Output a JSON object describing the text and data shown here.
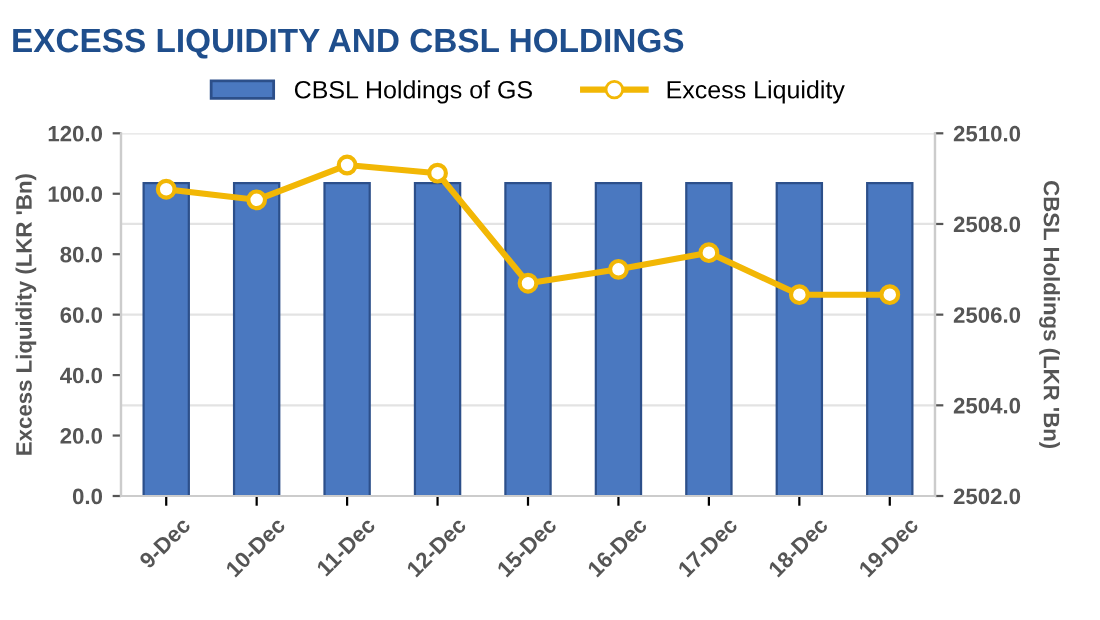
{
  "chart_data": {
    "type": "bar",
    "title": "EXCESS LIQUIDITY AND CBSL HOLDINGS",
    "categories": [
      "9-Dec",
      "10-Dec",
      "11-Dec",
      "12-Dec",
      "15-Dec",
      "16-Dec",
      "17-Dec",
      "18-Dec",
      "19-Dec"
    ],
    "series": [
      {
        "name": "CBSL Holdings of GS",
        "axis": "y2",
        "color": "#4a78c0",
        "values": [
          2508.9,
          2508.9,
          2508.9,
          2508.9,
          2508.9,
          2508.9,
          2508.9,
          2508.9,
          2508.9
        ]
      },
      {
        "name": "Excess Liquidity",
        "type": "line",
        "axis": "y",
        "color": "#f2b705",
        "marker": "circle",
        "values": [
          101.5,
          98.0,
          109.5,
          106.8,
          70.4,
          75.0,
          80.5,
          66.6,
          66.6
        ]
      }
    ],
    "ylabel": "Excess Liquidity (LKR 'Bn)",
    "y2label": "CBSL Holdings (LKR 'Bn)",
    "ylim": [
      0,
      120
    ],
    "yticks": [
      {
        "value": 0,
        "label": "0.0"
      },
      {
        "value": 20,
        "label": "20.0"
      },
      {
        "value": 40,
        "label": "40.0"
      },
      {
        "value": 60,
        "label": "60.0"
      },
      {
        "value": 80,
        "label": "80.0"
      },
      {
        "value": 100,
        "label": "100.0"
      },
      {
        "value": 120,
        "label": "120.0"
      }
    ],
    "y2lim": [
      2502,
      2510
    ],
    "y2ticks": [
      {
        "value": 2502,
        "label": "2502.0"
      },
      {
        "value": 2504,
        "label": "2504.0"
      },
      {
        "value": 2506,
        "label": "2506.0"
      },
      {
        "value": 2508,
        "label": "2508.0"
      },
      {
        "value": 2510,
        "label": "2510.0"
      }
    ],
    "grid": "y",
    "legend": "top"
  }
}
